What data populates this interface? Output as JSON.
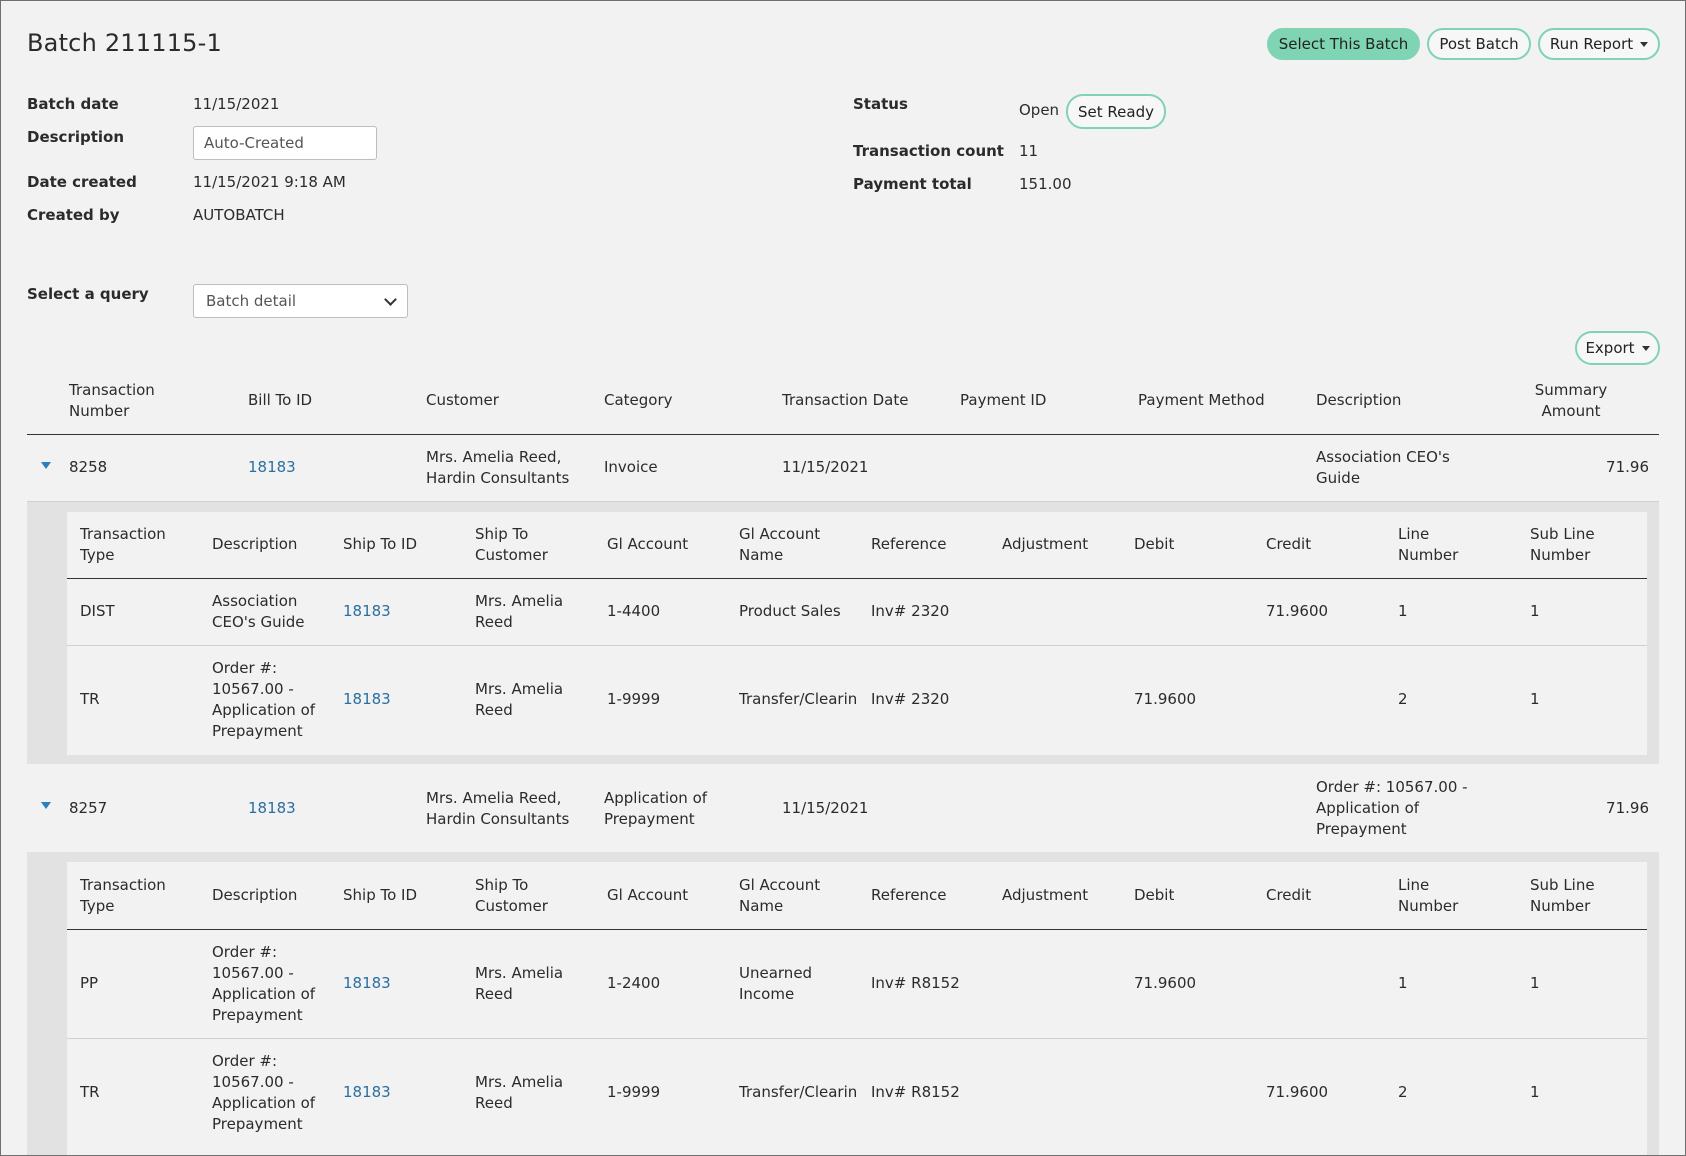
{
  "page": {
    "title": "Batch 211115-1"
  },
  "toolbar": {
    "select_batch": "Select This Batch",
    "post_batch": "Post Batch",
    "run_report": "Run Report"
  },
  "batch": {
    "batch_date_label": "Batch date",
    "batch_date": "11/15/2021",
    "description_label": "Description",
    "description": "Auto-Created",
    "date_created_label": "Date created",
    "date_created": "11/15/2021 9:18 AM",
    "created_by_label": "Created by",
    "created_by": "AUTOBATCH",
    "status_label": "Status",
    "status": "Open",
    "set_ready": "Set Ready",
    "transaction_count_label": "Transaction count",
    "transaction_count": "11",
    "payment_total_label": "Payment total",
    "payment_total": "151.00"
  },
  "query": {
    "label": "Select a query",
    "selected": "Batch detail"
  },
  "export_label": "Export",
  "main_headers": {
    "transaction_number": [
      "Transaction",
      "Number"
    ],
    "bill_to_id": "Bill To ID",
    "customer": "Customer",
    "category": "Category",
    "transaction_date": "Transaction Date",
    "payment_id": "Payment ID",
    "payment_method": "Payment Method",
    "description": "Description",
    "summary_amount": [
      "Summary",
      "Amount"
    ]
  },
  "sub_headers": {
    "transaction_type": [
      "Transaction",
      "Type"
    ],
    "description": "Description",
    "ship_to_id": "Ship To ID",
    "ship_to_customer": [
      "Ship To",
      "Customer"
    ],
    "gl_account": "Gl Account",
    "gl_account_name": [
      "Gl Account",
      "Name"
    ],
    "reference": "Reference",
    "adjustment": "Adjustment",
    "debit": "Debit",
    "credit": "Credit",
    "line_number": [
      "Line",
      "Number"
    ],
    "sub_line_number": [
      "Sub Line",
      "Number"
    ]
  },
  "transactions": [
    {
      "number": "8258",
      "bill_to_id": "18183",
      "customer": [
        "Mrs. Amelia Reed,",
        "Hardin Consultants"
      ],
      "category": [
        "Invoice"
      ],
      "date": "11/15/2021",
      "payment_id": "",
      "payment_method": "",
      "description": [
        "Association CEO's",
        "Guide"
      ],
      "amount": "71.96",
      "lines": [
        {
          "type": "DIST",
          "description": [
            "Association",
            "CEO's Guide"
          ],
          "ship_to_id": "18183",
          "ship_to_customer": [
            "Mrs. Amelia",
            "Reed"
          ],
          "gl_account": "1-4400",
          "gl_account_name": [
            "Product Sales"
          ],
          "reference": "Inv# 2320",
          "adjustment": "",
          "debit": "",
          "credit": "71.9600",
          "line": "1",
          "sub_line": "1"
        },
        {
          "type": "TR",
          "description": [
            "Order #:",
            "10567.00 -",
            "Application of",
            "Prepayment"
          ],
          "ship_to_id": "18183",
          "ship_to_customer": [
            "Mrs. Amelia",
            "Reed"
          ],
          "gl_account": "1-9999",
          "gl_account_name": [
            "Transfer/Clearin"
          ],
          "reference": "Inv# 2320",
          "adjustment": "",
          "debit": "71.9600",
          "credit": "",
          "line": "2",
          "sub_line": "1"
        }
      ]
    },
    {
      "number": "8257",
      "bill_to_id": "18183",
      "customer": [
        "Mrs. Amelia Reed,",
        "Hardin Consultants"
      ],
      "category": [
        "Application of",
        "Prepayment"
      ],
      "date": "11/15/2021",
      "payment_id": "",
      "payment_method": "",
      "description": [
        "Order #: 10567.00 -",
        "Application of",
        "Prepayment"
      ],
      "amount": "71.96",
      "lines": [
        {
          "type": "PP",
          "description": [
            "Order #:",
            "10567.00 -",
            "Application of",
            "Prepayment"
          ],
          "ship_to_id": "18183",
          "ship_to_customer": [
            "Mrs. Amelia",
            "Reed"
          ],
          "gl_account": "1-2400",
          "gl_account_name": [
            "Unearned",
            "Income"
          ],
          "reference": "Inv# R8152",
          "adjustment": "",
          "debit": "71.9600",
          "credit": "",
          "line": "1",
          "sub_line": "1"
        },
        {
          "type": "TR",
          "description": [
            "Order #:",
            "10567.00 -",
            "Application of",
            "Prepayment"
          ],
          "ship_to_id": "18183",
          "ship_to_customer": [
            "Mrs. Amelia",
            "Reed"
          ],
          "gl_account": "1-9999",
          "gl_account_name": [
            "Transfer/Clearin"
          ],
          "reference": "Inv# R8152",
          "adjustment": "",
          "debit": "",
          "credit": "71.9600",
          "line": "2",
          "sub_line": "1"
        }
      ]
    }
  ]
}
